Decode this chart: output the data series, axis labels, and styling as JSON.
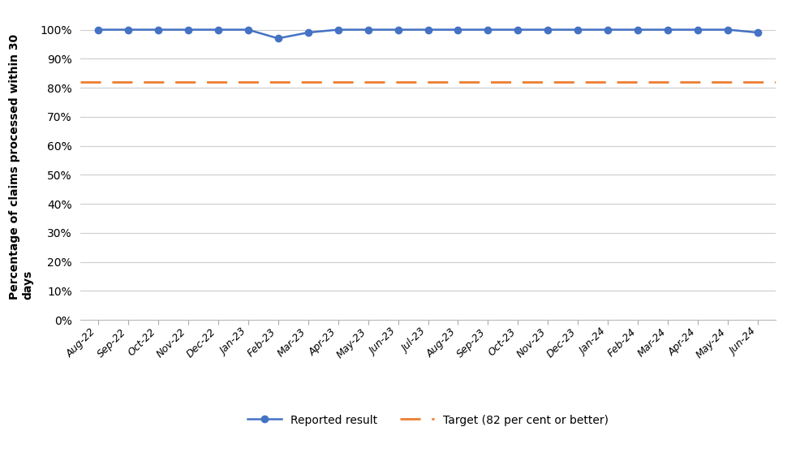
{
  "months": [
    "Aug-22",
    "Sep-22",
    "Oct-22",
    "Nov-22",
    "Dec-22",
    "Jan-23",
    "Feb-23",
    "Mar-23",
    "Apr-23",
    "May-23",
    "Jun-23",
    "Jul-23",
    "Aug-23",
    "Sep-23",
    "Oct-23",
    "Nov-23",
    "Dec-23",
    "Jan-24",
    "Feb-24",
    "Mar-24",
    "Apr-24",
    "May-24",
    "Jun-24"
  ],
  "values": [
    1.0,
    1.0,
    1.0,
    1.0,
    1.0,
    1.0,
    0.97,
    0.99,
    1.0,
    1.0,
    1.0,
    1.0,
    1.0,
    1.0,
    1.0,
    1.0,
    1.0,
    1.0,
    1.0,
    1.0,
    1.0,
    1.0,
    0.99
  ],
  "target": 0.82,
  "line_color": "#4472C4",
  "target_color": "#ED7D31",
  "ylabel_line1": "Percentage of claims processed within 30",
  "ylabel_line2": "days",
  "yticks": [
    0.0,
    0.1,
    0.2,
    0.3,
    0.4,
    0.5,
    0.6,
    0.7,
    0.8,
    0.9,
    1.0
  ],
  "ytick_labels": [
    "0%",
    "10%",
    "20%",
    "30%",
    "40%",
    "50%",
    "60%",
    "70%",
    "80%",
    "90%",
    "100%"
  ],
  "legend_result": "Reported result",
  "legend_target": "Target (82 per cent or better)",
  "background_color": "#ffffff",
  "grid_color": "#cccccc",
  "marker_size": 6,
  "line_width": 1.8,
  "ylim_min": 0.0,
  "ylim_max": 1.055
}
